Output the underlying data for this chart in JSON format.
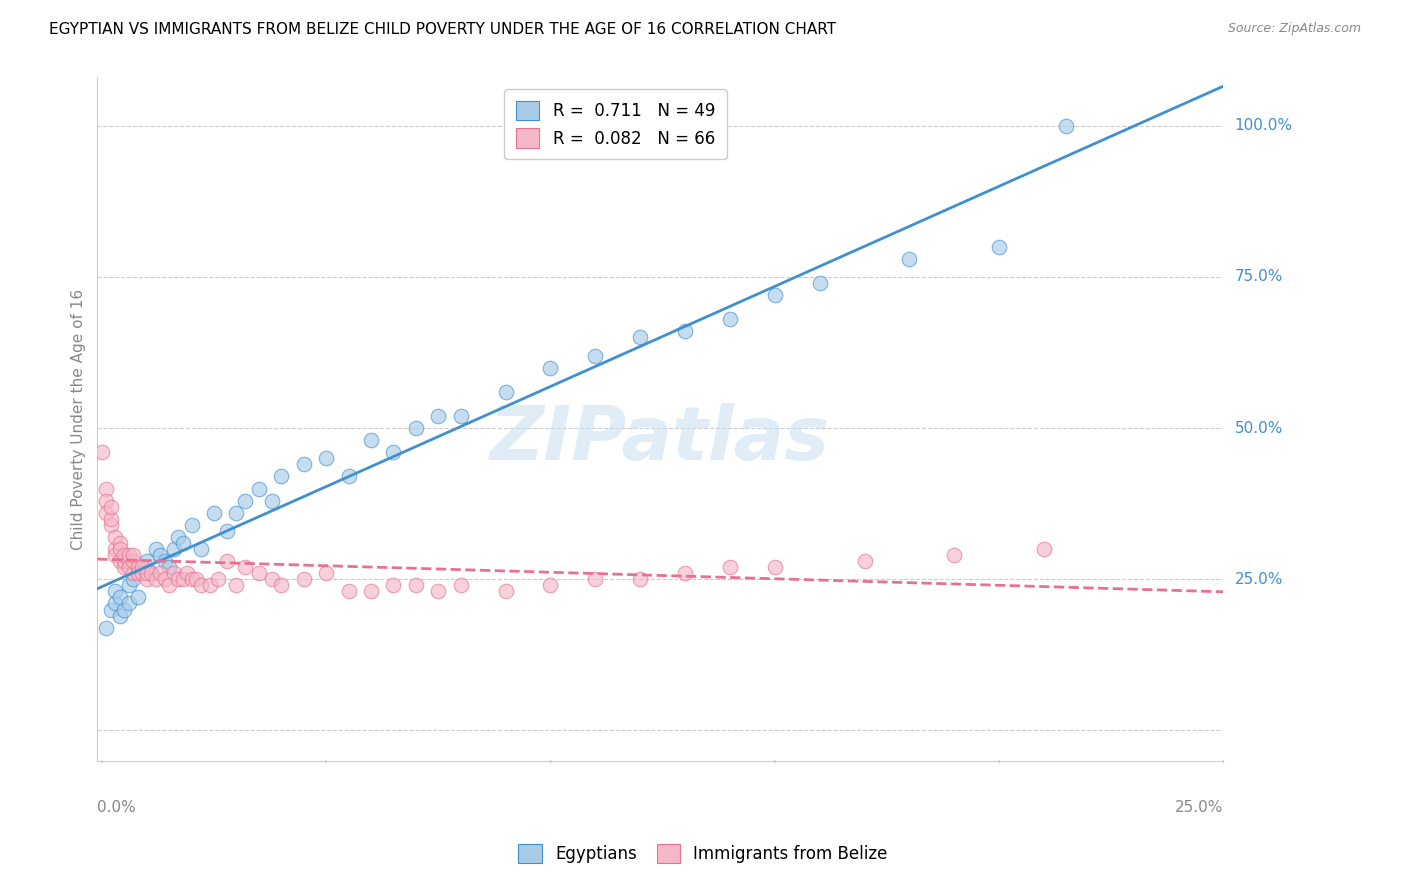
{
  "title": "EGYPTIAN VS IMMIGRANTS FROM BELIZE CHILD POVERTY UNDER THE AGE OF 16 CORRELATION CHART",
  "source": "Source: ZipAtlas.com",
  "ylabel": "Child Poverty Under the Age of 16",
  "watermark": "ZIPatlas",
  "color_egyptian": "#a8cce8",
  "color_belize": "#f4b8c8",
  "color_line_egyptian": "#4090d0",
  "color_line_belize": "#e87090",
  "legend_r1_label": "R =  0.711   N = 49",
  "legend_r2_label": "R =  0.082   N = 66",
  "xmin": -0.001,
  "xmax": 0.25,
  "ymin": -0.05,
  "ymax": 1.08,
  "egyptians_x": [
    0.001,
    0.002,
    0.003,
    0.003,
    0.004,
    0.004,
    0.005,
    0.006,
    0.006,
    0.007,
    0.008,
    0.009,
    0.01,
    0.011,
    0.012,
    0.013,
    0.014,
    0.015,
    0.016,
    0.017,
    0.018,
    0.02,
    0.022,
    0.025,
    0.028,
    0.03,
    0.032,
    0.035,
    0.038,
    0.04,
    0.045,
    0.05,
    0.055,
    0.06,
    0.065,
    0.07,
    0.075,
    0.08,
    0.09,
    0.1,
    0.11,
    0.12,
    0.13,
    0.14,
    0.15,
    0.16,
    0.18,
    0.2,
    0.215
  ],
  "egyptians_y": [
    0.17,
    0.2,
    0.21,
    0.23,
    0.19,
    0.22,
    0.2,
    0.24,
    0.21,
    0.25,
    0.22,
    0.27,
    0.28,
    0.26,
    0.3,
    0.29,
    0.28,
    0.27,
    0.3,
    0.32,
    0.31,
    0.34,
    0.3,
    0.36,
    0.33,
    0.36,
    0.38,
    0.4,
    0.38,
    0.42,
    0.44,
    0.45,
    0.42,
    0.48,
    0.46,
    0.5,
    0.52,
    0.52,
    0.56,
    0.6,
    0.62,
    0.65,
    0.66,
    0.68,
    0.72,
    0.74,
    0.78,
    0.8,
    1.0
  ],
  "belize_x": [
    0.0,
    0.001,
    0.001,
    0.001,
    0.002,
    0.002,
    0.002,
    0.003,
    0.003,
    0.003,
    0.004,
    0.004,
    0.004,
    0.005,
    0.005,
    0.005,
    0.006,
    0.006,
    0.006,
    0.007,
    0.007,
    0.007,
    0.008,
    0.008,
    0.009,
    0.009,
    0.01,
    0.01,
    0.011,
    0.012,
    0.013,
    0.014,
    0.015,
    0.016,
    0.017,
    0.018,
    0.019,
    0.02,
    0.021,
    0.022,
    0.024,
    0.026,
    0.028,
    0.03,
    0.032,
    0.035,
    0.038,
    0.04,
    0.045,
    0.05,
    0.055,
    0.06,
    0.065,
    0.07,
    0.075,
    0.08,
    0.09,
    0.1,
    0.11,
    0.12,
    0.13,
    0.14,
    0.15,
    0.17,
    0.19,
    0.21
  ],
  "belize_y": [
    0.46,
    0.4,
    0.38,
    0.36,
    0.34,
    0.35,
    0.37,
    0.3,
    0.32,
    0.29,
    0.31,
    0.28,
    0.3,
    0.27,
    0.28,
    0.29,
    0.28,
    0.27,
    0.29,
    0.26,
    0.28,
    0.29,
    0.27,
    0.26,
    0.26,
    0.27,
    0.25,
    0.26,
    0.26,
    0.25,
    0.26,
    0.25,
    0.24,
    0.26,
    0.25,
    0.25,
    0.26,
    0.25,
    0.25,
    0.24,
    0.24,
    0.25,
    0.28,
    0.24,
    0.27,
    0.26,
    0.25,
    0.24,
    0.25,
    0.26,
    0.23,
    0.23,
    0.24,
    0.24,
    0.23,
    0.24,
    0.23,
    0.24,
    0.25,
    0.25,
    0.26,
    0.27,
    0.27,
    0.28,
    0.29,
    0.3
  ]
}
